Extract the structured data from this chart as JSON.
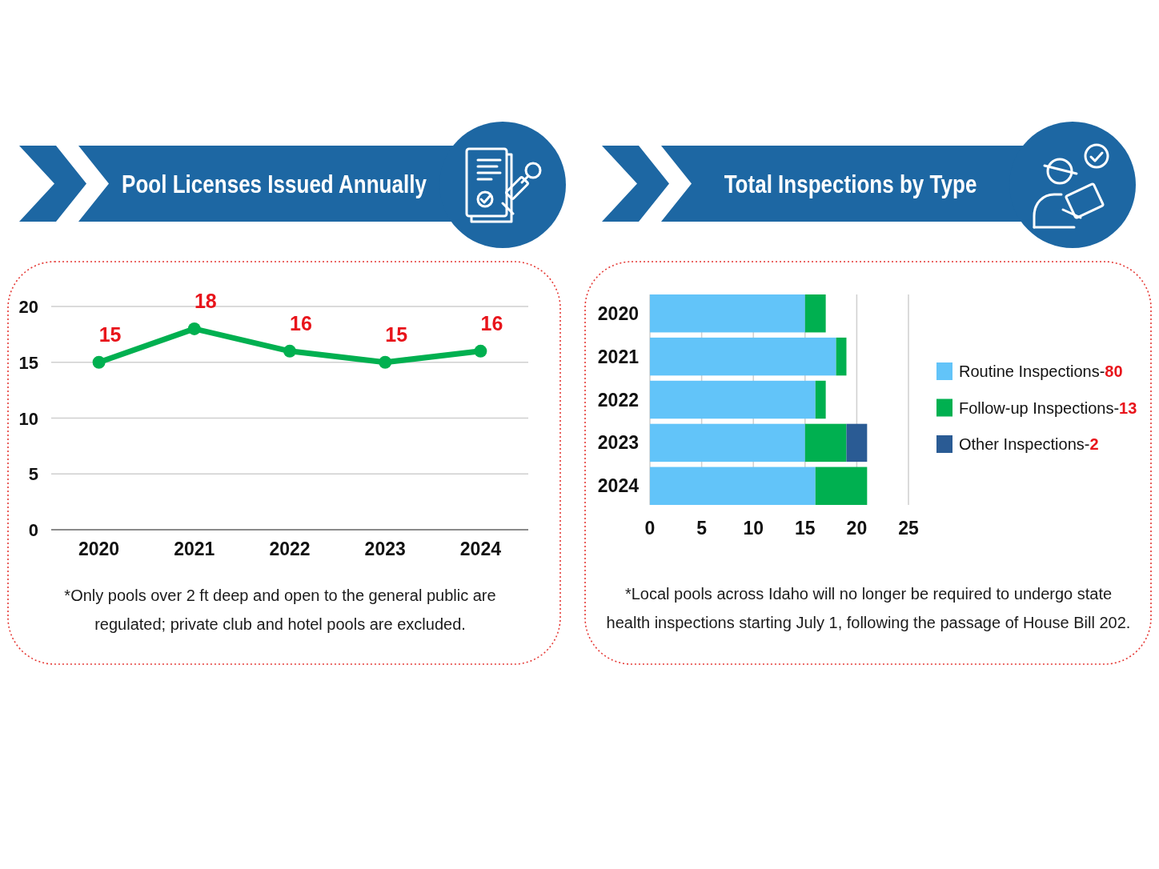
{
  "chart_data": [
    {
      "type": "line",
      "title": "Pool Licenses Issued Annually",
      "categories": [
        "2020",
        "2021",
        "2022",
        "2023",
        "2024"
      ],
      "series": [
        {
          "color": "#00b050",
          "values": [
            15,
            18,
            16,
            15,
            16
          ]
        }
      ],
      "ylim": [
        0,
        20
      ],
      "yticks": [
        0,
        5,
        10,
        15,
        20
      ],
      "grid": "y",
      "marker": "circle",
      "data_labels": true,
      "annotations": [
        "*Only pools over 2 ft deep and open to the general public are regulated; private club and hotel pools are excluded."
      ]
    },
    {
      "type": "bar",
      "orientation": "horizontal",
      "stacked": true,
      "title": "Total Inspections by Type",
      "categories": [
        "2020",
        "2021",
        "2022",
        "2023",
        "2024"
      ],
      "series": [
        {
          "name": "Routine Inspections-80",
          "color": "#62c4f9",
          "values": [
            15,
            18,
            16,
            15,
            16
          ]
        },
        {
          "name": "Follow-up Inspections-13",
          "color": "#00b050",
          "values": [
            2,
            1,
            1,
            4,
            5
          ]
        },
        {
          "name": "Other Inspections-2",
          "color": "#2a5b94",
          "values": [
            0,
            0,
            0,
            2,
            0
          ]
        }
      ],
      "xlim": [
        0,
        25
      ],
      "xticks": [
        0,
        5,
        10,
        15,
        20,
        25
      ],
      "grid": "x",
      "legend": "right",
      "annotations": [
        "*Local pools across Idaho will no longer be required to undergo state health inspections starting July 1, following the passage of House Bill 202."
      ]
    }
  ]
}
